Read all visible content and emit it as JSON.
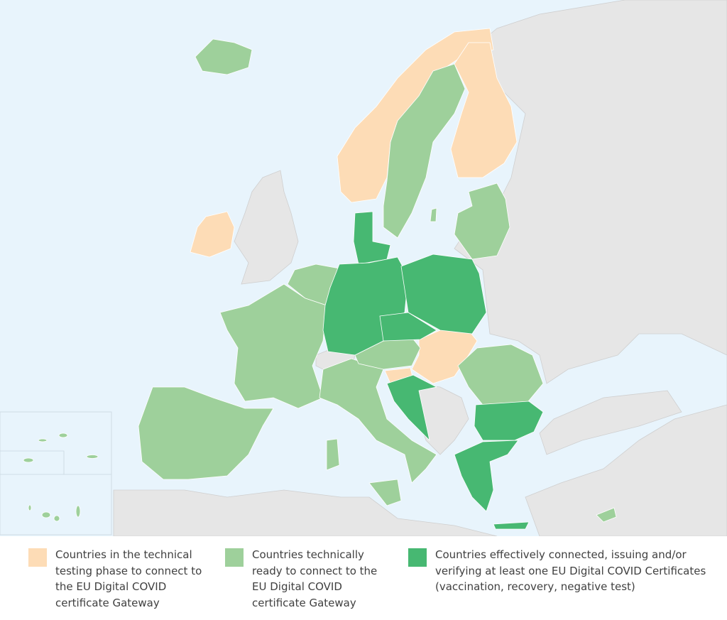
{
  "colors": {
    "sea": "#e8f4fc",
    "non_eu_land": "#e6e6e6",
    "testing": "#fddcb6",
    "ready": "#9ed09b",
    "connected": "#47b872"
  },
  "legend": [
    {
      "status": "testing",
      "label": "Countries in the technical testing phase to connect to the EU Digital COVID certificate Gateway"
    },
    {
      "status": "ready",
      "label": "Countries technically ready to connect to the EU Digital COVID certificate Gateway"
    },
    {
      "status": "connected",
      "label": "Countries effectively connected, issuing and/or verifying at least one EU Digital COVID Certificates (vaccination, recovery, negative test)"
    }
  ]
}
